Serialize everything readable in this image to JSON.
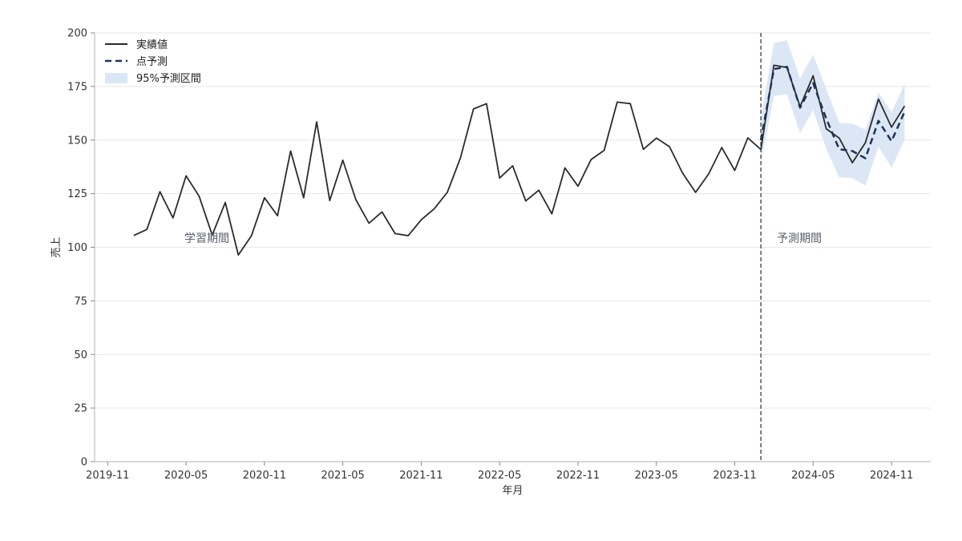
{
  "chart_data": {
    "type": "line",
    "xlabel": "年月",
    "ylabel": "売上",
    "ylim": [
      0,
      200
    ],
    "yticks": [
      0,
      25,
      50,
      75,
      100,
      125,
      150,
      175,
      200
    ],
    "xtick_labels": [
      "2019-11",
      "2020-05",
      "2020-11",
      "2021-05",
      "2021-11",
      "2022-05",
      "2022-11",
      "2023-05",
      "2023-11",
      "2024-05",
      "2024-11"
    ],
    "xlim": [
      "2019-10",
      "2025-02"
    ],
    "grid": "horizontal",
    "legend_position": "top-left",
    "legend": {
      "actual": "実績値",
      "forecast": "点予測",
      "interval": "95%予測区間"
    },
    "annotations": {
      "train": "学習期間",
      "forecast": "予測期間"
    },
    "forecast_start": "2024-01",
    "colors": {
      "actual": "#2b2b2b",
      "forecast": "#1f3355",
      "interval": "#dce7f5",
      "divider": "#555555"
    },
    "actual": {
      "x": [
        "2020-01",
        "2020-02",
        "2020-03",
        "2020-04",
        "2020-05",
        "2020-06",
        "2020-07",
        "2020-08",
        "2020-09",
        "2020-10",
        "2020-11",
        "2020-12",
        "2021-01",
        "2021-02",
        "2021-03",
        "2021-04",
        "2021-05",
        "2021-06",
        "2021-07",
        "2021-08",
        "2021-09",
        "2021-10",
        "2021-11",
        "2021-12",
        "2022-01",
        "2022-02",
        "2022-03",
        "2022-04",
        "2022-05",
        "2022-06",
        "2022-07",
        "2022-08",
        "2022-09",
        "2022-10",
        "2022-11",
        "2022-12",
        "2023-01",
        "2023-02",
        "2023-03",
        "2023-04",
        "2023-05",
        "2023-06",
        "2023-07",
        "2023-08",
        "2023-09",
        "2023-10",
        "2023-11",
        "2023-12",
        "2024-01",
        "2024-02",
        "2024-03",
        "2024-04",
        "2024-05",
        "2024-06",
        "2024-07",
        "2024-08",
        "2024-09",
        "2024-10",
        "2024-11",
        "2024-12"
      ],
      "values": [
        105.5,
        108.3,
        125.9,
        113.7,
        133.3,
        123.8,
        105.7,
        120.9,
        96.4,
        105.3,
        123.1,
        114.7,
        144.9,
        123.1,
        158.5,
        121.8,
        140.6,
        122.2,
        111.2,
        116.5,
        106.4,
        105.4,
        112.8,
        118.0,
        125.6,
        141.6,
        164.5,
        167.0,
        132.3,
        138.0,
        121.6,
        126.6,
        115.6,
        137.0,
        128.5,
        140.9,
        145.2,
        167.7,
        167.0,
        145.7,
        150.9,
        146.9,
        134.6,
        125.6,
        134.2,
        146.5,
        135.8,
        151.0,
        145.6,
        184.9,
        183.8,
        165.6,
        180.0,
        155.3,
        150.9,
        139.4,
        148.8,
        169.1,
        156.0,
        165.9
      ]
    },
    "forecast": {
      "x": [
        "2024-01",
        "2024-02",
        "2024-03",
        "2024-04",
        "2024-05",
        "2024-06",
        "2024-07",
        "2024-08",
        "2024-09",
        "2024-10",
        "2024-11",
        "2024-12"
      ],
      "values": [
        149.9,
        183.1,
        184.2,
        165.1,
        176.6,
        160.0,
        145.7,
        144.9,
        141.5,
        159.0,
        149.5,
        163.2
      ],
      "lower": [
        139.2,
        170.5,
        171.4,
        153.2,
        164.0,
        145.9,
        132.6,
        132.3,
        128.8,
        146.9,
        137.1,
        150.1
      ],
      "upper": [
        160.5,
        195.2,
        196.6,
        178.7,
        189.9,
        173.9,
        158.1,
        157.6,
        154.9,
        172.1,
        163.1,
        176.1
      ]
    }
  }
}
